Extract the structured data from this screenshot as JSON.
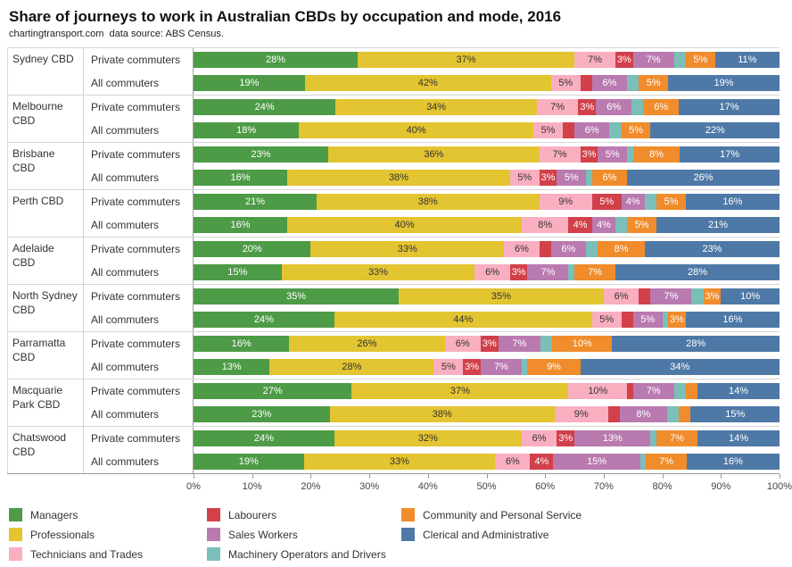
{
  "header": {
    "title": "Share of journeys to work in Australian CBDs by occupation and mode, 2016",
    "subtitle": "chartingtransport.com  data source: ABS Census."
  },
  "chart_data": {
    "type": "bar",
    "stacked": true,
    "orientation": "horizontal",
    "unit": "%",
    "xlim": [
      0,
      100
    ],
    "label_min": 3,
    "grid": false,
    "legend_position": "bottom",
    "x_ticks": [
      "0%",
      "10%",
      "20%",
      "30%",
      "40%",
      "50%",
      "60%",
      "70%",
      "80%",
      "90%",
      "100%"
    ],
    "series": [
      {
        "name": "Managers",
        "color": "#4e9b47",
        "label_color": "#ffffff"
      },
      {
        "name": "Professionals",
        "color": "#e3c431",
        "label_color": "#333333"
      },
      {
        "name": "Technicians and Trades",
        "color": "#f9afc0",
        "label_color": "#333333"
      },
      {
        "name": "Labourers",
        "color": "#d2404a",
        "label_color": "#ffffff"
      },
      {
        "name": "Sales Workers",
        "color": "#b97ab0",
        "label_color": "#ffffff"
      },
      {
        "name": "Machinery Operators and Drivers",
        "color": "#7bbfb9",
        "label_color": "#333333"
      },
      {
        "name": "Community and Personal Service",
        "color": "#f08c2b",
        "label_color": "#ffffff"
      },
      {
        "name": "Clerical and Administrative",
        "color": "#4e79a7",
        "label_color": "#ffffff"
      }
    ],
    "legend_columns": [
      [
        0,
        1,
        2
      ],
      [
        3,
        4,
        5
      ],
      [
        6,
        7
      ]
    ],
    "groups": [
      {
        "cbd": "Sydney CBD",
        "rows": [
          {
            "mode": "Private commuters",
            "values": [
              28,
              37,
              7,
              3,
              7,
              2,
              5,
              11
            ]
          },
          {
            "mode": "All commuters",
            "values": [
              19,
              42,
              5,
              2,
              6,
              2,
              5,
              19
            ]
          }
        ]
      },
      {
        "cbd": "Melbourne CBD",
        "rows": [
          {
            "mode": "Private commuters",
            "values": [
              24,
              34,
              7,
              3,
              6,
              2,
              6,
              17
            ]
          },
          {
            "mode": "All commuters",
            "values": [
              18,
              40,
              5,
              2,
              6,
              2,
              5,
              22
            ]
          }
        ]
      },
      {
        "cbd": "Brisbane CBD",
        "rows": [
          {
            "mode": "Private commuters",
            "values": [
              23,
              36,
              7,
              3,
              5,
              1,
              8,
              17
            ]
          },
          {
            "mode": "All commuters",
            "values": [
              16,
              38,
              5,
              3,
              5,
              1,
              6,
              26
            ]
          }
        ]
      },
      {
        "cbd": "Perth CBD",
        "rows": [
          {
            "mode": "Private commuters",
            "values": [
              21,
              38,
              9,
              5,
              4,
              2,
              5,
              16
            ]
          },
          {
            "mode": "All commuters",
            "values": [
              16,
              40,
              8,
              4,
              4,
              2,
              5,
              21
            ]
          }
        ]
      },
      {
        "cbd": "Adelaide CBD",
        "rows": [
          {
            "mode": "Private commuters",
            "values": [
              20,
              33,
              6,
              2,
              6,
              2,
              8,
              23
            ]
          },
          {
            "mode": "All commuters",
            "values": [
              15,
              33,
              6,
              3,
              7,
              1,
              7,
              28
            ]
          }
        ]
      },
      {
        "cbd": "North Sydney CBD",
        "rows": [
          {
            "mode": "Private commuters",
            "values": [
              35,
              35,
              6,
              2,
              7,
              2,
              3,
              10
            ]
          },
          {
            "mode": "All commuters",
            "values": [
              24,
              44,
              5,
              2,
              5,
              1,
              3,
              16
            ]
          }
        ]
      },
      {
        "cbd": "Parramatta CBD",
        "rows": [
          {
            "mode": "Private commuters",
            "values": [
              16,
              26,
              6,
              3,
              7,
              2,
              10,
              28
            ]
          },
          {
            "mode": "All commuters",
            "values": [
              13,
              28,
              5,
              3,
              7,
              1,
              9,
              34
            ]
          }
        ]
      },
      {
        "cbd": "Macquarie Park CBD",
        "rows": [
          {
            "mode": "Private commuters",
            "values": [
              27,
              37,
              10,
              1,
              7,
              2,
              2,
              14
            ]
          },
          {
            "mode": "All commuters",
            "values": [
              23,
              38,
              9,
              2,
              8,
              2,
              2,
              15
            ]
          }
        ]
      },
      {
        "cbd": "Chatswood CBD",
        "rows": [
          {
            "mode": "Private commuters",
            "values": [
              24,
              32,
              6,
              3,
              13,
              1,
              7,
              14
            ]
          },
          {
            "mode": "All commuters",
            "values": [
              19,
              33,
              6,
              4,
              15,
              1,
              7,
              16
            ]
          }
        ]
      }
    ]
  }
}
